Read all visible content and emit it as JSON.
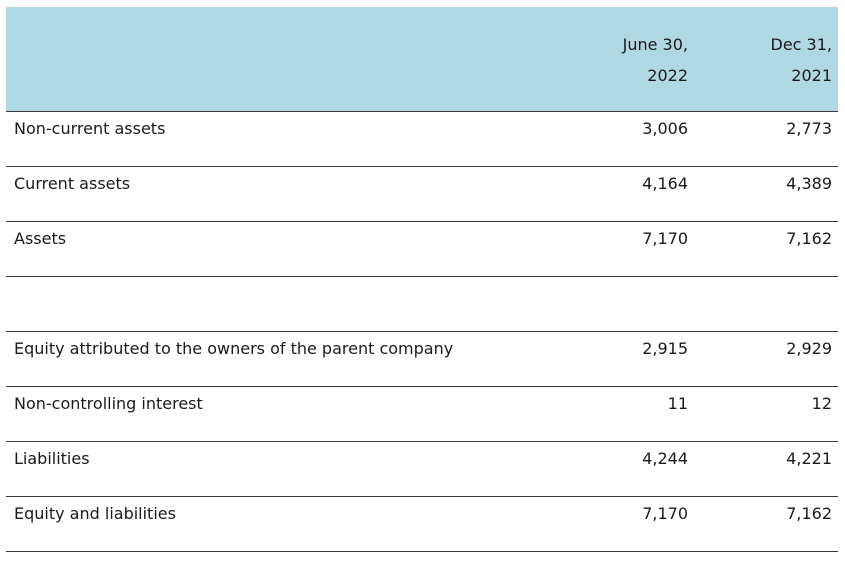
{
  "header": {
    "col1_line1": "June 30,",
    "col1_line2": "2022",
    "col2_line1": "Dec 31,",
    "col2_line2": "2021"
  },
  "rows": [
    {
      "label": "Non-current assets",
      "v1": "3,006",
      "v2": "2,773"
    },
    {
      "label": "Current assets",
      "v1": "4,164",
      "v2": "4,389"
    },
    {
      "label": "Assets",
      "v1": "7,170",
      "v2": "7,162"
    },
    {
      "label": "",
      "v1": "",
      "v2": ""
    },
    {
      "label": "Equity attributed to the owners of the parent company",
      "v1": "2,915",
      "v2": "2,929"
    },
    {
      "label": "Non-controlling interest",
      "v1": "11",
      "v2": "12"
    },
    {
      "label": "Liabilities",
      "v1": "4,244",
      "v2": "4,221"
    },
    {
      "label": "Equity and liabilities",
      "v1": "7,170",
      "v2": "7,162"
    }
  ],
  "colors": {
    "header_bg": "#b1d9e5",
    "rule": "#3a3a3a"
  }
}
